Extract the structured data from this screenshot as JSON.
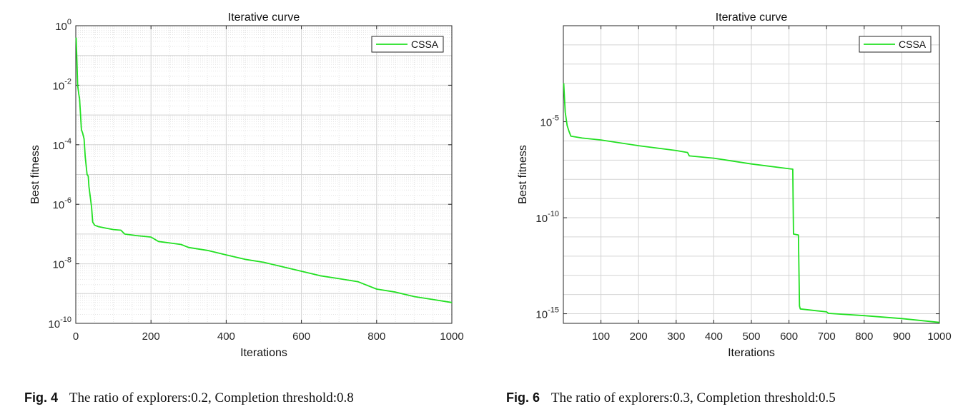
{
  "chart_data": [
    {
      "type": "line",
      "title": "Iterative curve",
      "xlabel": "Iterations",
      "ylabel": "Best fitness",
      "yscale": "log",
      "xlim": [
        0,
        1000
      ],
      "ylim_exp": [
        -10,
        0
      ],
      "grid": "major+minor",
      "legend": "top-right",
      "x_ticks": [
        "0",
        "200",
        "400",
        "600",
        "800",
        "1000"
      ],
      "y_ticks": [
        {
          "base": "10",
          "exp": "0"
        },
        {
          "base": "10",
          "exp": "-2"
        },
        {
          "base": "10",
          "exp": "-4"
        },
        {
          "base": "10",
          "exp": "-6"
        },
        {
          "base": "10",
          "exp": "-8"
        },
        {
          "base": "10",
          "exp": "-10"
        }
      ],
      "series": [
        {
          "name": "CSSA",
          "color": "#22e022",
          "x": [
            1,
            3,
            5,
            8,
            10,
            15,
            18,
            22,
            25,
            30,
            33,
            35,
            38,
            42,
            45,
            50,
            60,
            80,
            100,
            120,
            130,
            160,
            200,
            220,
            250,
            280,
            300,
            350,
            400,
            450,
            500,
            550,
            600,
            650,
            700,
            750,
            800,
            850,
            900,
            950,
            1000
          ],
          "log10_y": [
            -0.4,
            -1.2,
            -2.0,
            -2.3,
            -2.45,
            -3.5,
            -3.6,
            -3.8,
            -4.4,
            -5.0,
            -5.05,
            -5.4,
            -5.7,
            -6.1,
            -6.6,
            -6.7,
            -6.75,
            -6.8,
            -6.85,
            -6.87,
            -7.0,
            -7.05,
            -7.1,
            -7.25,
            -7.3,
            -7.35,
            -7.45,
            -7.55,
            -7.7,
            -7.85,
            -7.95,
            -8.1,
            -8.25,
            -8.4,
            -8.5,
            -8.6,
            -8.85,
            -8.95,
            -9.1,
            -9.2,
            -9.3
          ]
        }
      ]
    },
    {
      "type": "line",
      "title": "Iterative curve",
      "xlabel": "Iterations",
      "ylabel": "Best fitness",
      "yscale": "log",
      "xlim": [
        0,
        1000
      ],
      "ylim_exp": [
        -15.5,
        0
      ],
      "grid": "major",
      "legend": "top-right",
      "x_ticks": [
        "100",
        "200",
        "300",
        "400",
        "500",
        "600",
        "700",
        "800",
        "900",
        "1000"
      ],
      "y_ticks": [
        {
          "base": "10",
          "exp": "-5"
        },
        {
          "base": "10",
          "exp": "-10"
        },
        {
          "base": "10",
          "exp": "-15"
        }
      ],
      "series": [
        {
          "name": "CSSA",
          "color": "#22e022",
          "x": [
            1,
            5,
            10,
            15,
            20,
            50,
            100,
            200,
            300,
            330,
            335,
            400,
            500,
            600,
            610,
            612,
            625,
            628,
            630,
            700,
            705,
            800,
            900,
            1000
          ],
          "log10_y": [
            -3.0,
            -4.5,
            -5.2,
            -5.5,
            -5.75,
            -5.85,
            -5.95,
            -6.25,
            -6.5,
            -6.6,
            -6.78,
            -6.9,
            -7.2,
            -7.45,
            -7.47,
            -10.85,
            -10.9,
            -14.6,
            -14.75,
            -14.9,
            -14.98,
            -15.1,
            -15.25,
            -15.45
          ]
        }
      ]
    }
  ],
  "captions": [
    {
      "label": "Fig. 4",
      "text": "The ratio of explorers:0.2, Completion threshold:0.8"
    },
    {
      "label": "Fig. 6",
      "text": "The ratio of explorers:0.3, Completion threshold:0.5"
    }
  ]
}
